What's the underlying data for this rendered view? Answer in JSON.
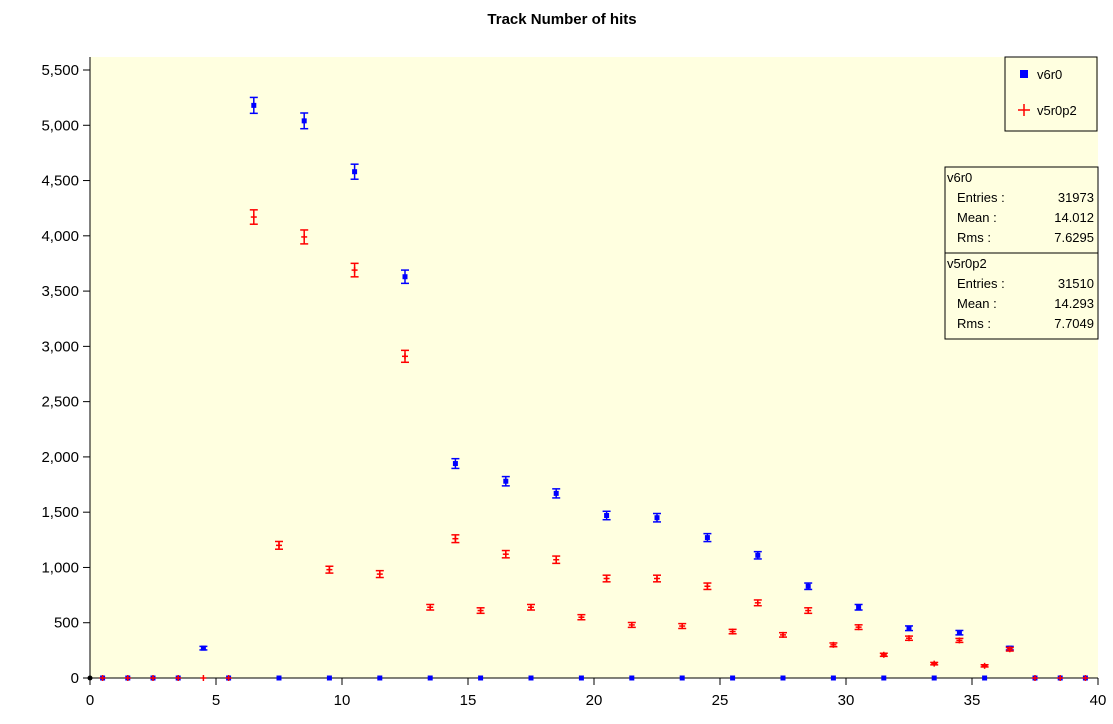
{
  "chart_data": {
    "type": "scatter",
    "title": "Track Number of hits",
    "xlabel": "",
    "ylabel": "",
    "xlim": [
      0,
      40
    ],
    "ylim": [
      0,
      5500
    ],
    "xticks": [
      0,
      5,
      10,
      15,
      20,
      25,
      30,
      35,
      40
    ],
    "yticks": [
      0,
      500,
      1000,
      1500,
      2000,
      2500,
      3000,
      3500,
      4000,
      4500,
      5000,
      5500
    ],
    "xtick_labels": [
      "0",
      "5",
      "10",
      "15",
      "20",
      "25",
      "30",
      "35",
      "40"
    ],
    "ytick_labels": [
      "0",
      "500",
      "1,000",
      "1,500",
      "2,000",
      "2,500",
      "3,000",
      "3,500",
      "4,000",
      "4,500",
      "5,000",
      "5,500"
    ],
    "grid": false,
    "legend_position": "top-right",
    "background_color": "#ffffe0",
    "series": [
      {
        "name": "v6r0",
        "color": "#0000ff",
        "marker": "square",
        "x": [
          0.5,
          1.5,
          2.5,
          3.5,
          4.5,
          5.5,
          6.5,
          7.5,
          8.5,
          9.5,
          10.5,
          11.5,
          12.5,
          13.5,
          14.5,
          15.5,
          16.5,
          17.5,
          18.5,
          19.5,
          20.5,
          21.5,
          22.5,
          23.5,
          24.5,
          25.5,
          26.5,
          27.5,
          28.5,
          29.5,
          30.5,
          31.5,
          32.5,
          33.5,
          34.5,
          35.5,
          36.5,
          37.5,
          38.5,
          39.5
        ],
        "y": [
          0,
          0,
          0,
          0,
          270,
          0,
          5180,
          0,
          5040,
          0,
          4580,
          0,
          3630,
          0,
          1940,
          0,
          1780,
          0,
          1670,
          0,
          1470,
          0,
          1450,
          0,
          1270,
          0,
          1110,
          0,
          830,
          0,
          640,
          0,
          450,
          0,
          410,
          0,
          270,
          0,
          0,
          0
        ],
        "errors": [
          0,
          0,
          0,
          0,
          16,
          0,
          72,
          0,
          71,
          0,
          68,
          0,
          60,
          0,
          44,
          0,
          42,
          0,
          41,
          0,
          38,
          0,
          38,
          0,
          36,
          0,
          33,
          0,
          29,
          0,
          25,
          0,
          21,
          0,
          20,
          0,
          16,
          0,
          0,
          0
        ]
      },
      {
        "name": "v5r0p2",
        "color": "#ff0000",
        "marker": "plus",
        "x": [
          0.5,
          1.5,
          2.5,
          3.5,
          4.5,
          5.5,
          6.5,
          7.5,
          8.5,
          9.5,
          10.5,
          11.5,
          12.5,
          13.5,
          14.5,
          15.5,
          16.5,
          17.5,
          18.5,
          19.5,
          20.5,
          21.5,
          22.5,
          23.5,
          24.5,
          25.5,
          26.5,
          27.5,
          28.5,
          29.5,
          30.5,
          31.5,
          32.5,
          33.5,
          34.5,
          35.5,
          36.5,
          37.5,
          38.5,
          39.5
        ],
        "y": [
          0,
          0,
          0,
          0,
          0,
          0,
          4170,
          1200,
          3990,
          980,
          3690,
          940,
          2910,
          640,
          1260,
          610,
          1120,
          640,
          1070,
          550,
          900,
          480,
          900,
          470,
          830,
          420,
          680,
          390,
          610,
          300,
          460,
          210,
          360,
          130,
          340,
          110,
          260,
          0,
          0,
          0
        ],
        "errors": [
          0,
          0,
          0,
          0,
          0,
          0,
          65,
          35,
          63,
          31,
          61,
          31,
          54,
          25,
          35,
          25,
          33,
          25,
          33,
          23,
          30,
          22,
          30,
          22,
          29,
          20,
          26,
          20,
          25,
          17,
          21,
          14,
          19,
          11,
          18,
          10,
          16,
          0,
          0,
          0
        ]
      }
    ],
    "stats": [
      {
        "name": "v6r0",
        "rows": [
          {
            "label": "Entries :",
            "value": "31973"
          },
          {
            "label": "Mean :",
            "value": "14.012"
          },
          {
            "label": "Rms :",
            "value": "7.6295"
          }
        ]
      },
      {
        "name": "v5r0p2",
        "rows": [
          {
            "label": "Entries :",
            "value": "31510"
          },
          {
            "label": "Mean :",
            "value": "14.293"
          },
          {
            "label": "Rms :",
            "value": "7.7049"
          }
        ]
      }
    ]
  }
}
